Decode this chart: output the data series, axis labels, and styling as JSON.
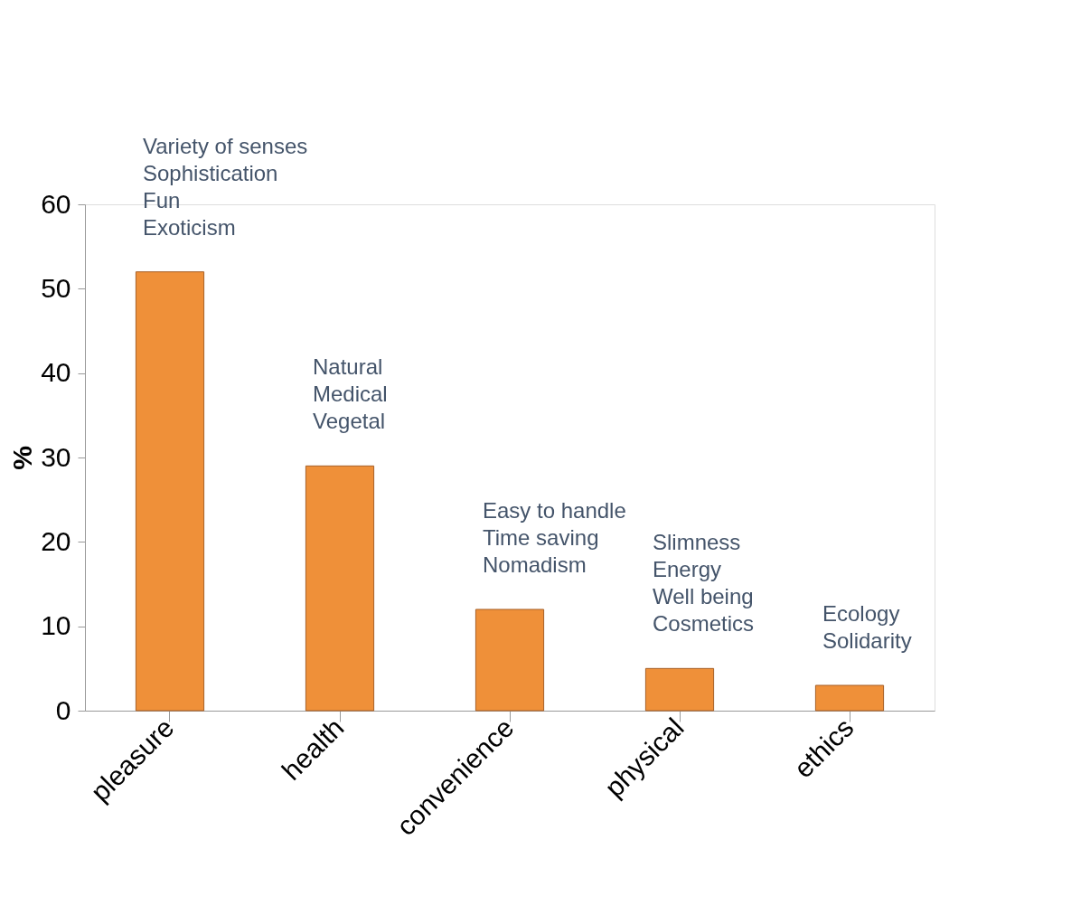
{
  "chart_data": {
    "type": "bar",
    "ylabel": "%",
    "categories": [
      "pleasure",
      "health",
      "convenience",
      "physical",
      "ethics"
    ],
    "values": [
      52,
      29,
      12,
      5,
      3
    ],
    "color": "#ef9039",
    "ylim": [
      0,
      60
    ],
    "yticks": [
      0,
      10,
      20,
      30,
      40,
      50,
      60
    ],
    "grid": false,
    "annotations": [
      "Variety of senses\nSophistication\nFun\nExoticism",
      "Natural\nMedical\nVegetal",
      "Easy to handle\nTime saving\nNomadism",
      "Slimness\nEnergy\nWell being\nCosmetics",
      "Ecology\nSolidarity"
    ]
  }
}
